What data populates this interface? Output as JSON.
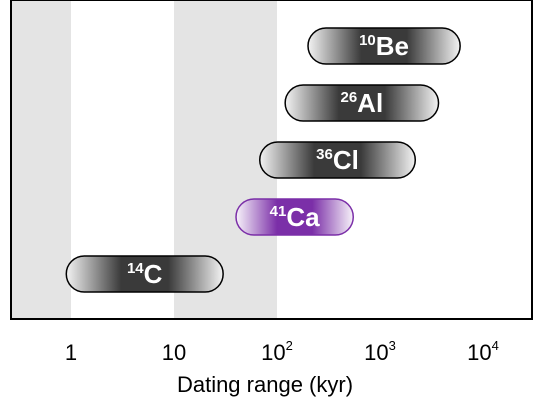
{
  "chart_data": {
    "type": "range",
    "xlabel": "Dating range (kyr)",
    "x_scale": "log",
    "xlim": [
      0.56,
      70
    ],
    "x_ticks": [
      {
        "value": 1,
        "base": "1",
        "sup": ""
      },
      {
        "value": 10,
        "base": "10",
        "sup": ""
      },
      {
        "value": 100,
        "base": "10",
        "sup": "2"
      },
      {
        "value": 1000,
        "base": "10",
        "sup": "3"
      },
      {
        "value": 10000,
        "base": "10",
        "sup": "4"
      }
    ],
    "background": "alternating vertical bands per decade",
    "ranges": [
      {
        "isotope": "Be",
        "mass": "10",
        "min": 200,
        "max": 6000,
        "color": "#3a3a3a"
      },
      {
        "isotope": "Al",
        "mass": "26",
        "min": 120,
        "max": 3700,
        "color": "#3a3a3a"
      },
      {
        "isotope": "Cl",
        "mass": "36",
        "min": 68,
        "max": 2200,
        "color": "#3a3a3a"
      },
      {
        "isotope": "Ca",
        "mass": "41",
        "min": 40,
        "max": 550,
        "color": "#7b2fa8"
      },
      {
        "isotope": "C",
        "mass": "14",
        "min": 0.9,
        "max": 30,
        "color": "#3a3a3a"
      }
    ]
  }
}
